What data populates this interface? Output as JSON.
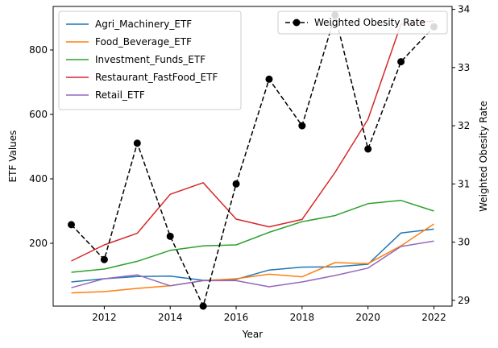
{
  "chart_data": {
    "type": "line",
    "x": [
      2011,
      2012,
      2013,
      2014,
      2015,
      2016,
      2017,
      2018,
      2019,
      2020,
      2021,
      2022
    ],
    "xlabel": "Year",
    "ylabel_left": "ETF Values",
    "ylabel_right": "Weighted Obesity Rate",
    "xlim": [
      2010.45,
      2022.55
    ],
    "ylim_left": [
      5,
      935
    ],
    "ylim_right": [
      28.9,
      34.05
    ],
    "xticks": [
      2012,
      2014,
      2016,
      2018,
      2020,
      2022
    ],
    "yticks_left": [
      200,
      400,
      600,
      800
    ],
    "yticks_right": [
      29,
      30,
      31,
      32,
      33,
      34
    ],
    "grid": false,
    "legend_left_position": "upper left",
    "legend_right_position": "upper right",
    "series": [
      {
        "name": "Agri_Machinery_ETF",
        "axis": "left",
        "color": "#1f77b4",
        "values": [
          80,
          90,
          97,
          98,
          85,
          88,
          117,
          126,
          127,
          135,
          232,
          244
        ]
      },
      {
        "name": "Food_Beverage_ETF",
        "axis": "left",
        "color": "#ff7f0e",
        "values": [
          46,
          50,
          60,
          68,
          84,
          90,
          104,
          96,
          140,
          137,
          192,
          260
        ]
      },
      {
        "name": "Investment_Funds_ETF",
        "axis": "left",
        "color": "#2ca02c",
        "values": [
          110,
          120,
          144,
          178,
          192,
          195,
          234,
          267,
          286,
          323,
          333,
          300
        ]
      },
      {
        "name": "Restaurant_FastFood_ETF",
        "axis": "left",
        "color": "#d62728",
        "values": [
          145,
          195,
          231,
          352,
          388,
          275,
          251,
          274,
          420,
          585,
          880,
          890
        ]
      },
      {
        "name": "Retail_ETF",
        "axis": "left",
        "color": "#9467bd",
        "values": [
          62,
          90,
          102,
          68,
          84,
          84,
          65,
          80,
          100,
          123,
          190,
          207
        ]
      },
      {
        "name": "Weighted Obesity Rate",
        "axis": "right",
        "color": "#000000",
        "style": "dashed-circle",
        "values": [
          30.3,
          29.7,
          31.7,
          30.1,
          28.9,
          31.0,
          32.8,
          32.0,
          33.9,
          31.6,
          33.1,
          33.7
        ]
      }
    ]
  }
}
